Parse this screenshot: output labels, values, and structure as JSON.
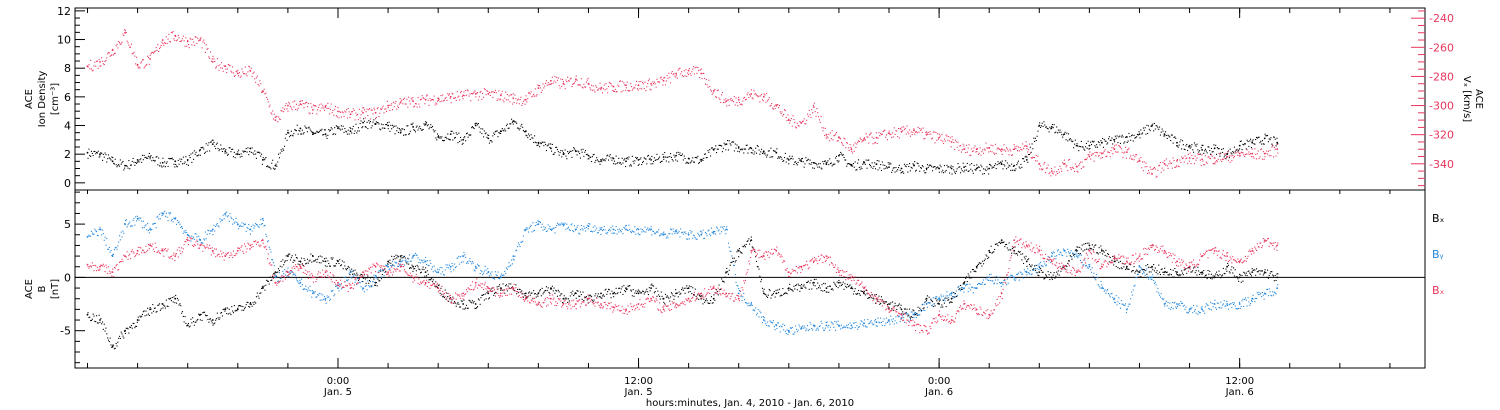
{
  "colors": {
    "black": "#000000",
    "pink": "#e8365d",
    "blue": "#2588dd"
  },
  "xaxis": {
    "ticks": [
      {
        "hours": 0,
        "label": "0:00",
        "sub": "Jan. 5"
      },
      {
        "hours": 12,
        "label": "12:00",
        "sub": "Jan. 5"
      },
      {
        "hours": 24,
        "label": "0:00",
        "sub": "Jan. 6"
      },
      {
        "hours": 36,
        "label": "12:00",
        "sub": "Jan. 6"
      }
    ],
    "title": "hours:minutes, Jan.  4, 2010 - Jan.  6, 2010"
  },
  "chart_data": [
    {
      "type": "scatter",
      "ylabel_left": [
        "ACE",
        "Ion Density",
        "[cm⁻³]"
      ],
      "ylabel_right": [
        "ACE",
        "Vₓ [km/s]"
      ],
      "yticks_left": [
        "0",
        "2",
        "4",
        "6",
        "8",
        "10",
        "12"
      ],
      "yticks_right": [
        "-340",
        "-320",
        "-300",
        "-280",
        "-260",
        "-240"
      ],
      "xlim": [
        -10.5,
        43.4
      ],
      "ylim_left": [
        -0.5,
        12.2
      ],
      "ylim_right": [
        -358,
        -233
      ],
      "series": [
        {
          "axis": "left",
          "color": "black",
          "x": [
            -10,
            -9.5,
            -9,
            -8.5,
            -8,
            -7.5,
            -7,
            -6.5,
            -6,
            -5.5,
            -5,
            -4.5,
            -4,
            -3.5,
            -3,
            -2.5,
            -2,
            -1.5,
            -1,
            -0.5,
            0,
            0.5,
            1,
            1.5,
            2,
            2.5,
            3,
            3.5,
            4,
            4.5,
            5,
            5.5,
            6,
            6.5,
            7,
            7.5,
            8,
            8.5,
            9,
            9.5,
            10,
            10.5,
            11,
            11.5,
            12,
            12.5,
            13,
            13.5,
            14,
            14.5,
            15,
            15.5,
            16,
            16.5,
            17,
            17.5,
            18,
            18.5,
            19,
            19.5,
            20,
            20.5,
            21,
            21.5,
            22,
            22.5,
            23,
            23.5,
            24,
            24.5,
            25,
            25.5,
            26,
            26.5,
            27,
            27.5,
            28,
            28.5,
            29,
            29.5,
            30,
            30.5,
            31,
            31.5,
            32,
            32.5,
            33,
            33.5,
            34,
            34.5,
            35,
            35.5,
            36,
            36.5,
            37,
            37.5
          ],
          "y": [
            2.1,
            2.0,
            1.5,
            1.2,
            1.6,
            1.8,
            1.4,
            1.5,
            1.6,
            2.3,
            2.7,
            2.2,
            2.0,
            2.4,
            1.6,
            1.2,
            3.5,
            3.8,
            3.5,
            3.4,
            3.8,
            3.6,
            4.2,
            4.1,
            4.0,
            3.5,
            3.9,
            4.1,
            3.2,
            3.4,
            3.0,
            4.0,
            3.1,
            3.6,
            4.3,
            3.6,
            2.8,
            2.4,
            2.0,
            2.2,
            1.9,
            1.6,
            1.7,
            1.5,
            1.6,
            1.6,
            1.8,
            1.9,
            1.7,
            1.6,
            2.3,
            2.7,
            2.5,
            2.4,
            2.2,
            2.1,
            1.6,
            1.5,
            1.4,
            1.3,
            1.9,
            1.2,
            1.4,
            1.3,
            1.1,
            1.0,
            1.2,
            1.0,
            1.0,
            1.0,
            1.1,
            1.0,
            1.0,
            1.3,
            1.2,
            1.6,
            4.0,
            3.9,
            3.4,
            2.6,
            2.6,
            2.8,
            3.0,
            3.2,
            3.4,
            4.0,
            3.4,
            2.8,
            2.6,
            2.3,
            2.4,
            2.0,
            2.6,
            2.8,
            3.1,
            2.8
          ]
        },
        {
          "axis": "right",
          "color": "pink",
          "x": [
            -10,
            -9.5,
            -9,
            -8.5,
            -8,
            -7.5,
            -7,
            -6.5,
            -6,
            -5.5,
            -5,
            -4.5,
            -4,
            -3.5,
            -3,
            -2.5,
            -2,
            -1.5,
            -1,
            -0.5,
            0,
            0.5,
            1,
            1.5,
            2,
            2.5,
            3,
            3.5,
            4,
            4.5,
            5,
            5.5,
            6,
            6.5,
            7,
            7.5,
            8,
            8.5,
            9,
            9.5,
            10,
            10.5,
            11,
            11.5,
            12,
            12.5,
            13,
            13.5,
            14,
            14.5,
            15,
            15.5,
            16,
            16.5,
            17,
            17.5,
            18,
            18.5,
            19,
            19.5,
            20,
            20.5,
            21,
            21.5,
            22,
            22.5,
            23,
            23.5,
            24,
            24.5,
            25,
            25.5,
            26,
            26.5,
            27,
            27.5,
            28,
            28.5,
            29,
            29.5,
            30,
            30.5,
            31,
            31.5,
            32,
            32.5,
            33,
            33.5,
            34,
            34.5,
            35,
            35.5,
            36,
            36.5,
            37,
            37.5
          ],
          "y": [
            -273,
            -270,
            -262,
            -250,
            -272,
            -268,
            -255,
            -252,
            -256,
            -255,
            -270,
            -273,
            -278,
            -276,
            -290,
            -310,
            -300,
            -299,
            -303,
            -301,
            -304,
            -306,
            -305,
            -305,
            -300,
            -298,
            -297,
            -296,
            -295,
            -294,
            -293,
            -292,
            -292,
            -293,
            -295,
            -296,
            -288,
            -283,
            -285,
            -282,
            -285,
            -288,
            -287,
            -286,
            -286,
            -285,
            -283,
            -278,
            -276,
            -278,
            -290,
            -297,
            -296,
            -292,
            -294,
            -300,
            -310,
            -312,
            -301,
            -320,
            -322,
            -330,
            -323,
            -322,
            -319,
            -318,
            -317,
            -320,
            -322,
            -325,
            -330,
            -330,
            -329,
            -330,
            -330,
            -328,
            -340,
            -345,
            -340,
            -342,
            -335,
            -333,
            -330,
            -332,
            -338,
            -347,
            -340,
            -338,
            -336,
            -337,
            -336,
            -335,
            -333,
            -333,
            -333,
            -330
          ]
        }
      ]
    },
    {
      "type": "scatter",
      "ylabel_left": [
        "ACE",
        "B",
        "[nT]"
      ],
      "yticks_left": [
        "-5",
        "0",
        "5"
      ],
      "xlim": [
        -10.5,
        43.4
      ],
      "ylim_left": [
        -8.5,
        8.2
      ],
      "zero_line": true,
      "legend": [
        "Bₓ",
        "Bᵧ",
        "Bₓ"
      ],
      "series": [
        {
          "name": "Bx",
          "label": "Bₓ",
          "color": "black",
          "x": [
            -10,
            -9.5,
            -9,
            -8.5,
            -8,
            -7.5,
            -7,
            -6.5,
            -6,
            -5.5,
            -5,
            -4.5,
            -4,
            -3.5,
            -3,
            -2.5,
            -2,
            -1.5,
            -1,
            -0.5,
            0,
            0.5,
            1,
            1.5,
            2,
            2.5,
            3,
            3.5,
            4,
            4.5,
            5,
            5.5,
            6,
            6.5,
            7,
            7.5,
            8,
            8.5,
            9,
            9.5,
            10,
            10.5,
            11,
            11.5,
            12,
            12.5,
            13,
            13.5,
            14,
            14.5,
            15,
            15.5,
            16,
            16.5,
            17,
            17.5,
            18,
            18.5,
            19,
            19.5,
            20,
            20.5,
            21,
            21.5,
            22,
            22.5,
            23,
            23.5,
            24,
            24.5,
            25,
            25.5,
            26,
            26.5,
            27,
            27.5,
            28,
            28.5,
            29,
            29.5,
            30,
            30.5,
            31,
            31.5,
            32,
            32.5,
            33,
            33.5,
            34,
            34.5,
            35,
            35.5,
            36,
            36.5,
            37,
            37.5
          ],
          "y": [
            -3.5,
            -4.0,
            -6.5,
            -5.0,
            -4.0,
            -3.0,
            -2.5,
            -2.0,
            -4.5,
            -3.5,
            -4.0,
            -3.0,
            -3.0,
            -2.5,
            -1.0,
            0.5,
            2.0,
            1.5,
            2.0,
            1.5,
            1.5,
            0.5,
            0.0,
            -0.5,
            1.5,
            2.0,
            1.0,
            0.5,
            -1.0,
            -2.0,
            -2.5,
            -2.5,
            -1.5,
            -1.0,
            -1.0,
            -1.5,
            -1.5,
            -1.0,
            -2.0,
            -1.5,
            -2.0,
            -1.5,
            -1.5,
            -1.0,
            -1.5,
            -1.0,
            -2.0,
            -1.5,
            -1.0,
            -2.0,
            -2.0,
            0.5,
            2.5,
            3.5,
            -1.5,
            -1.5,
            -1.0,
            -1.0,
            -0.5,
            -1.0,
            -0.5,
            -1.0,
            -1.5,
            -2.0,
            -2.5,
            -3.0,
            -3.5,
            -2.0,
            -2.5,
            -2.0,
            -0.5,
            1.0,
            2.5,
            3.5,
            2.5,
            1.5,
            0.5,
            0.0,
            1.0,
            2.5,
            3.0,
            2.5,
            1.5,
            1.0,
            0.5,
            1.0,
            0.5,
            0.5,
            1.0,
            0.5,
            0.0,
            1.0,
            0.0,
            0.5,
            0.5,
            0.0
          ]
        },
        {
          "name": "By",
          "label": "Bᵧ",
          "color": "blue",
          "x": [
            -10,
            -9.5,
            -9,
            -8.5,
            -8,
            -7.5,
            -7,
            -6.5,
            -6,
            -5.5,
            -5,
            -4.5,
            -4,
            -3.5,
            -3,
            -2.5,
            -2,
            -1.5,
            -1,
            -0.5,
            0,
            0.5,
            1,
            1.5,
            2,
            2.5,
            3,
            3.5,
            4,
            4.5,
            5,
            5.5,
            6,
            6.5,
            7,
            7.5,
            8,
            8.5,
            9,
            9.5,
            10,
            10.5,
            11,
            11.5,
            12,
            12.5,
            13,
            13.5,
            14,
            14.5,
            15,
            15.5,
            16,
            16.5,
            17,
            17.5,
            18,
            18.5,
            19,
            19.5,
            20,
            20.5,
            21,
            21.5,
            22,
            22.5,
            23,
            23.5,
            24,
            24.5,
            25,
            25.5,
            26,
            26.5,
            27,
            27.5,
            28,
            28.5,
            29,
            29.5,
            30,
            30.5,
            31,
            31.5,
            32,
            32.5,
            33,
            33.5,
            34,
            34.5,
            35,
            35.5,
            36,
            36.5,
            37,
            37.5
          ],
          "y": [
            3.8,
            4.5,
            2.0,
            5.0,
            5.5,
            4.5,
            6.0,
            5.5,
            4.0,
            3.5,
            4.5,
            6.0,
            5.0,
            4.5,
            5.5,
            0.0,
            0.5,
            -0.5,
            -1.5,
            -2.0,
            -1.0,
            0.5,
            -1.0,
            0.0,
            1.0,
            1.5,
            2.0,
            1.5,
            0.5,
            1.0,
            2.0,
            1.0,
            0.5,
            0.0,
            2.0,
            4.5,
            5.0,
            4.5,
            5.0,
            4.5,
            4.8,
            4.5,
            4.5,
            4.5,
            4.5,
            4.5,
            4.0,
            4.3,
            4.0,
            4.0,
            4.3,
            4.5,
            -1.5,
            -2.5,
            -4.0,
            -4.5,
            -5.0,
            -4.8,
            -4.5,
            -4.5,
            -4.5,
            -4.5,
            -4.3,
            -4.2,
            -4.0,
            -3.8,
            -3.5,
            -2.5,
            -2.0,
            -1.5,
            -1.0,
            -1.0,
            0.0,
            -0.5,
            0.0,
            0.5,
            1.0,
            2.0,
            2.5,
            2.0,
            1.0,
            -1.0,
            -2.0,
            -3.0,
            1.0,
            0.0,
            -2.5,
            -2.5,
            -3.0,
            -3.0,
            -2.5,
            -2.5,
            -2.5,
            -2.0,
            -1.5,
            -1.0
          ]
        },
        {
          "name": "Bz",
          "label": "Bₓ",
          "color": "pink",
          "x": [
            -10,
            -9.5,
            -9,
            -8.5,
            -8,
            -7.5,
            -7,
            -6.5,
            -6,
            -5.5,
            -5,
            -4.5,
            -4,
            -3.5,
            -3,
            -2.5,
            -2,
            -1.5,
            -1,
            -0.5,
            0,
            0.5,
            1,
            1.5,
            2,
            2.5,
            3,
            3.5,
            4,
            4.5,
            5,
            5.5,
            6,
            6.5,
            7,
            7.5,
            8,
            8.5,
            9,
            9.5,
            10,
            10.5,
            11,
            11.5,
            12,
            12.5,
            13,
            13.5,
            14,
            14.5,
            15,
            15.5,
            16,
            16.5,
            17,
            17.5,
            18,
            18.5,
            19,
            19.5,
            20,
            20.5,
            21,
            21.5,
            22,
            22.5,
            23,
            23.5,
            24,
            24.5,
            25,
            25.5,
            26,
            26.5,
            27,
            27.5,
            28,
            28.5,
            29,
            29.5,
            30,
            30.5,
            31,
            31.5,
            32,
            32.5,
            33,
            33.5,
            34,
            34.5,
            35,
            35.5,
            36,
            36.5,
            37,
            37.5
          ],
          "y": [
            1.2,
            1.0,
            0.5,
            2.0,
            2.5,
            3.0,
            2.5,
            2.0,
            3.5,
            3.0,
            2.5,
            2.0,
            2.5,
            3.0,
            3.5,
            -0.5,
            0.5,
            1.0,
            0.0,
            0.5,
            -0.5,
            -1.0,
            0.5,
            1.0,
            0.5,
            1.0,
            0.0,
            -0.5,
            -1.0,
            -2.0,
            -1.5,
            -0.5,
            -1.0,
            -1.5,
            -1.0,
            -2.0,
            -2.5,
            -2.0,
            -2.5,
            -2.5,
            -2.0,
            -2.5,
            -2.8,
            -3.0,
            -2.5,
            -2.0,
            -3.0,
            -2.5,
            -2.0,
            -1.5,
            -1.0,
            -1.5,
            -2.0,
            2.5,
            2.0,
            2.5,
            0.5,
            1.0,
            1.5,
            2.0,
            0.5,
            0.0,
            -1.0,
            -2.0,
            -3.0,
            -3.5,
            -4.5,
            -5.0,
            -3.5,
            -4.0,
            -2.5,
            -3.0,
            -3.5,
            -1.5,
            3.5,
            3.0,
            2.5,
            1.5,
            1.0,
            0.5,
            2.5,
            1.0,
            2.0,
            1.5,
            2.0,
            3.0,
            2.5,
            1.5,
            1.0,
            2.0,
            2.5,
            2.0,
            1.5,
            2.5,
            3.5,
            3.0
          ]
        }
      ]
    }
  ]
}
